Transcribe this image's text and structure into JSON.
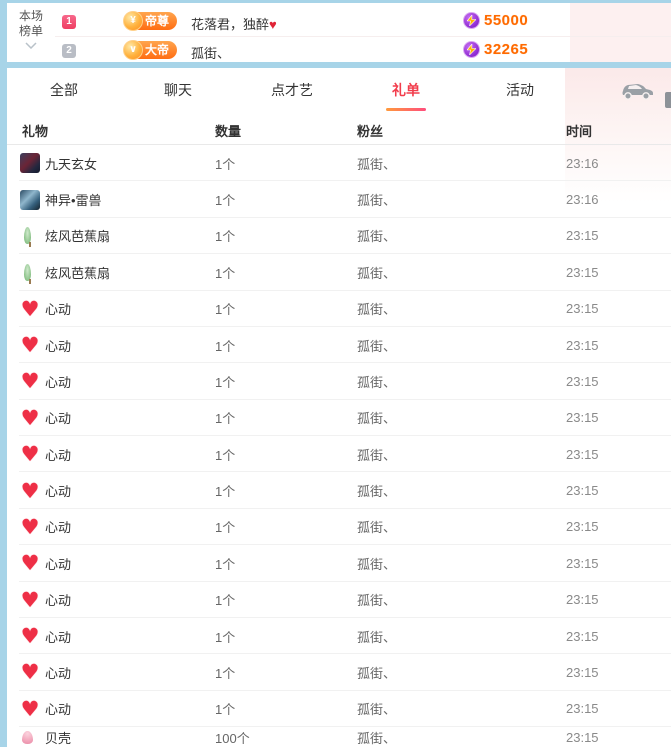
{
  "ranking": {
    "label_line1": "本场",
    "label_line2": "榜单",
    "entries": [
      {
        "rank": "1",
        "badge": "帝尊",
        "coin_glyph": "¥",
        "name": "花落君，独醉",
        "heart": "♥",
        "value": "55000"
      },
      {
        "rank": "2",
        "badge": "大帝",
        "coin_glyph": "∨",
        "name": "孤街、",
        "heart": "",
        "value": "32265"
      }
    ]
  },
  "tabs": [
    {
      "label": "全部",
      "active": false
    },
    {
      "label": "聊天",
      "active": false
    },
    {
      "label": "点才艺",
      "active": false
    },
    {
      "label": "礼单",
      "active": true
    },
    {
      "label": "活动",
      "active": false
    }
  ],
  "icons": {
    "car": "car-icon",
    "bolt": "lightning-bolt-icon",
    "caret": "chevron-down-icon"
  },
  "table": {
    "headers": {
      "gift": "礼物",
      "qty": "数量",
      "fan": "粉丝",
      "time": "时间"
    },
    "rows": [
      {
        "icon": "goddess",
        "gift": "九天玄女",
        "qty": "1个",
        "fan": "孤街、",
        "time": "23:16",
        "partial": false
      },
      {
        "icon": "beast",
        "gift": "神异•雷兽",
        "qty": "1个",
        "fan": "孤街、",
        "time": "23:16",
        "partial": false
      },
      {
        "icon": "fan",
        "gift": "炫风芭蕉扇",
        "qty": "1个",
        "fan": "孤街、",
        "time": "23:15",
        "partial": false
      },
      {
        "icon": "fan",
        "gift": "炫风芭蕉扇",
        "qty": "1个",
        "fan": "孤街、",
        "time": "23:15",
        "partial": false
      },
      {
        "icon": "heart",
        "gift": "心动",
        "qty": "1个",
        "fan": "孤街、",
        "time": "23:15",
        "partial": false
      },
      {
        "icon": "heart",
        "gift": "心动",
        "qty": "1个",
        "fan": "孤街、",
        "time": "23:15",
        "partial": false
      },
      {
        "icon": "heart",
        "gift": "心动",
        "qty": "1个",
        "fan": "孤街、",
        "time": "23:15",
        "partial": false
      },
      {
        "icon": "heart",
        "gift": "心动",
        "qty": "1个",
        "fan": "孤街、",
        "time": "23:15",
        "partial": false
      },
      {
        "icon": "heart",
        "gift": "心动",
        "qty": "1个",
        "fan": "孤街、",
        "time": "23:15",
        "partial": false
      },
      {
        "icon": "heart",
        "gift": "心动",
        "qty": "1个",
        "fan": "孤街、",
        "time": "23:15",
        "partial": false
      },
      {
        "icon": "heart",
        "gift": "心动",
        "qty": "1个",
        "fan": "孤街、",
        "time": "23:15",
        "partial": false
      },
      {
        "icon": "heart",
        "gift": "心动",
        "qty": "1个",
        "fan": "孤街、",
        "time": "23:15",
        "partial": false
      },
      {
        "icon": "heart",
        "gift": "心动",
        "qty": "1个",
        "fan": "孤街、",
        "time": "23:15",
        "partial": false
      },
      {
        "icon": "heart",
        "gift": "心动",
        "qty": "1个",
        "fan": "孤街、",
        "time": "23:15",
        "partial": false
      },
      {
        "icon": "heart",
        "gift": "心动",
        "qty": "1个",
        "fan": "孤街、",
        "time": "23:15",
        "partial": false
      },
      {
        "icon": "heart",
        "gift": "心动",
        "qty": "1个",
        "fan": "孤街、",
        "time": "23:15",
        "partial": false
      },
      {
        "icon": "shell",
        "gift": "贝壳",
        "qty": "100个",
        "fan": "孤街、",
        "time": "23:15",
        "partial": true
      }
    ]
  },
  "colors": {
    "accent_red": "#f23d4c",
    "accent_orange": "#ff6a00",
    "underline_from": "#ff9b3c",
    "underline_to": "#ff4d7d",
    "rank1_badge": "#ef3e63",
    "rank2_badge": "#b9bdc5",
    "bg_blue": "#a7d4e8",
    "pink_panel": "#fdf0f0"
  },
  "heart_glyph": "♥"
}
